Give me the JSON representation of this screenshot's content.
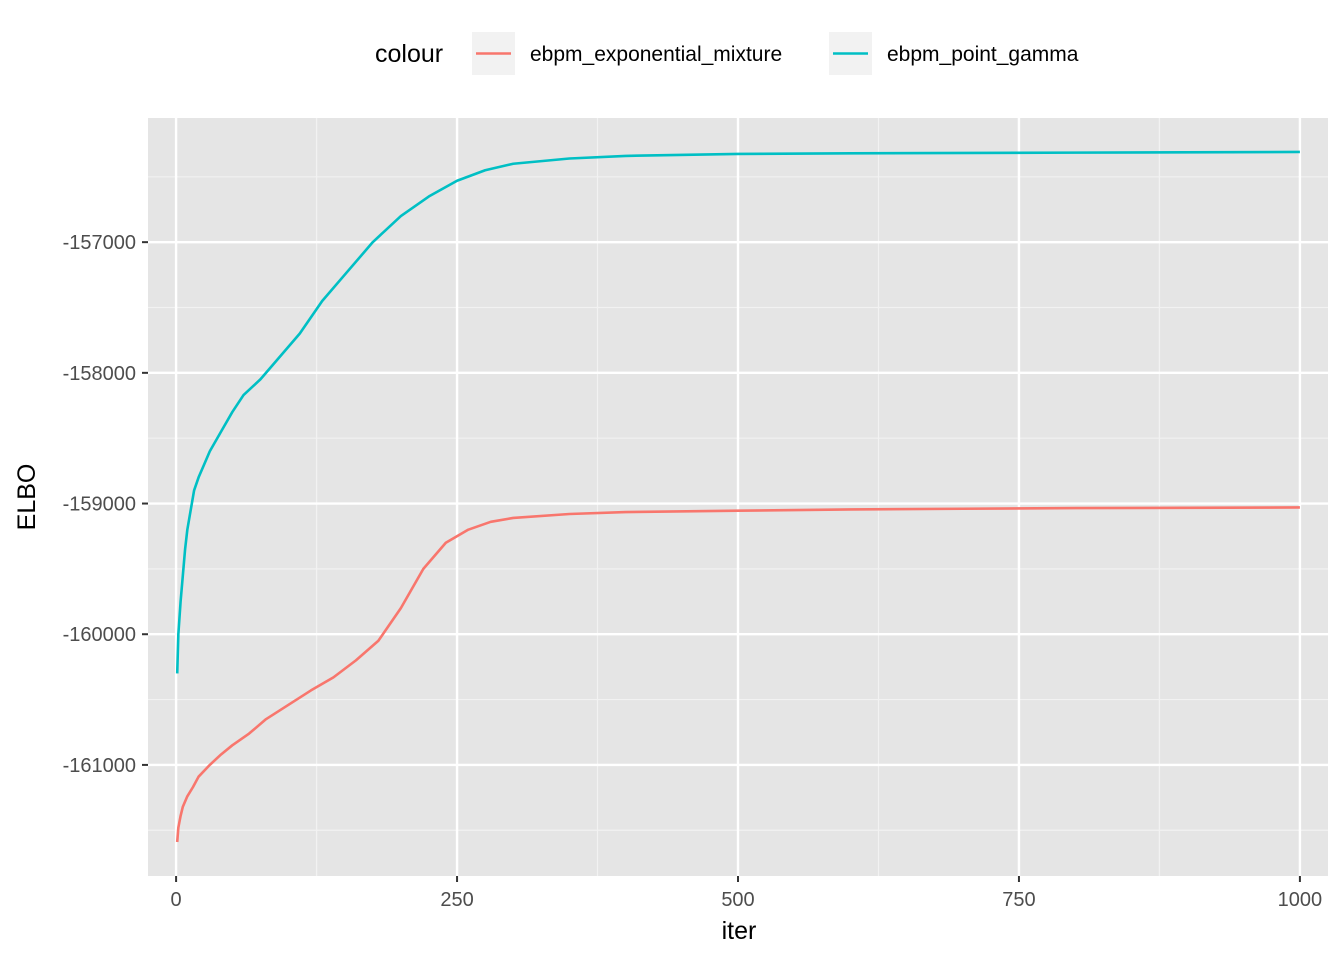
{
  "chart_data": {
    "type": "line",
    "xlabel": "iter",
    "ylabel": "ELBO",
    "xlim": [
      -25,
      1025
    ],
    "ylim": [
      -161850,
      -156050
    ],
    "x_ticks": [
      0,
      250,
      500,
      750,
      1000
    ],
    "x_tick_labels": [
      "0",
      "250",
      "500",
      "750",
      "1000"
    ],
    "y_ticks": [
      -161000,
      -160000,
      -159000,
      -158000,
      -157000
    ],
    "y_tick_labels": [
      "-161000",
      "-160000",
      "-159000",
      "-158000",
      "-157000"
    ],
    "grid": true,
    "legend": {
      "title": "colour",
      "position": "top"
    },
    "background": "#e5e5e5",
    "series": [
      {
        "name": "ebpm_exponential_mixture",
        "color": "#f8766d",
        "points": [
          [
            1,
            -161590
          ],
          [
            2,
            -161480
          ],
          [
            4,
            -161390
          ],
          [
            6,
            -161320
          ],
          [
            10,
            -161240
          ],
          [
            15,
            -161170
          ],
          [
            20,
            -161090
          ],
          [
            30,
            -161000
          ],
          [
            40,
            -160920
          ],
          [
            50,
            -160850
          ],
          [
            65,
            -160760
          ],
          [
            80,
            -160650
          ],
          [
            100,
            -160540
          ],
          [
            120,
            -160430
          ],
          [
            140,
            -160330
          ],
          [
            160,
            -160200
          ],
          [
            180,
            -160050
          ],
          [
            200,
            -159800
          ],
          [
            220,
            -159500
          ],
          [
            240,
            -159300
          ],
          [
            260,
            -159200
          ],
          [
            280,
            -159140
          ],
          [
            300,
            -159110
          ],
          [
            350,
            -159080
          ],
          [
            400,
            -159065
          ],
          [
            500,
            -159055
          ],
          [
            600,
            -159045
          ],
          [
            700,
            -159040
          ],
          [
            800,
            -159035
          ],
          [
            1000,
            -159030
          ]
        ]
      },
      {
        "name": "ebpm_point_gamma",
        "color": "#00bfc4",
        "points": [
          [
            1,
            -160300
          ],
          [
            2,
            -160000
          ],
          [
            4,
            -159750
          ],
          [
            6,
            -159550
          ],
          [
            8,
            -159350
          ],
          [
            10,
            -159200
          ],
          [
            13,
            -159050
          ],
          [
            16,
            -158900
          ],
          [
            20,
            -158800
          ],
          [
            25,
            -158700
          ],
          [
            30,
            -158600
          ],
          [
            40,
            -158450
          ],
          [
            50,
            -158300
          ],
          [
            60,
            -158170
          ],
          [
            75,
            -158050
          ],
          [
            90,
            -157900
          ],
          [
            110,
            -157700
          ],
          [
            130,
            -157450
          ],
          [
            150,
            -157250
          ],
          [
            175,
            -157000
          ],
          [
            200,
            -156800
          ],
          [
            225,
            -156650
          ],
          [
            250,
            -156530
          ],
          [
            275,
            -156450
          ],
          [
            300,
            -156400
          ],
          [
            350,
            -156360
          ],
          [
            400,
            -156340
          ],
          [
            500,
            -156325
          ],
          [
            600,
            -156320
          ],
          [
            800,
            -156315
          ],
          [
            1000,
            -156310
          ]
        ]
      }
    ]
  }
}
